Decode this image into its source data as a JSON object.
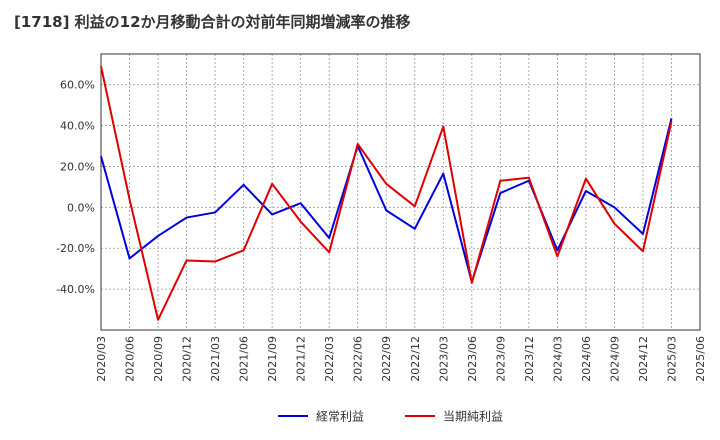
{
  "chart_data": {
    "type": "line",
    "title": "[1718]  利益の12か月移動合計の対前年同期増減率の推移",
    "xlabel": "",
    "ylabel": "",
    "ylim": [
      -60,
      75
    ],
    "y_ticks": [
      60,
      40,
      20,
      0,
      -20,
      -40
    ],
    "y_tick_labels": [
      "60.0%",
      "40.0%",
      "20.0%",
      "0.0%",
      "-20.0%",
      "-40.0%"
    ],
    "categories": [
      "2020/03",
      "2020/06",
      "2020/09",
      "2020/12",
      "2021/03",
      "2021/06",
      "2021/09",
      "2021/12",
      "2022/03",
      "2022/06",
      "2022/09",
      "2022/12",
      "2023/03",
      "2023/06",
      "2023/09",
      "2023/12",
      "2024/03",
      "2024/06",
      "2024/09",
      "2024/12",
      "2025/03",
      "2025/06"
    ],
    "grid": true,
    "legend_position": "bottom-center",
    "series": [
      {
        "name": "経常利益",
        "color": "#0000dd",
        "values": [
          25,
          -25,
          -14,
          -5,
          -2.5,
          11,
          -3.5,
          2,
          -15,
          30,
          -1.5,
          -10.5,
          16.5,
          -36.5,
          7,
          13,
          -21,
          8,
          0,
          -13,
          43.5,
          null
        ]
      },
      {
        "name": "当期純利益",
        "color": "#dd0000",
        "values": [
          69,
          4,
          -55,
          -26,
          -26.5,
          -21,
          11.5,
          -7,
          -22,
          31,
          11.5,
          0.5,
          39.5,
          -37,
          13,
          14.5,
          -24,
          14,
          -8,
          -21.5,
          42,
          null
        ]
      }
    ]
  }
}
